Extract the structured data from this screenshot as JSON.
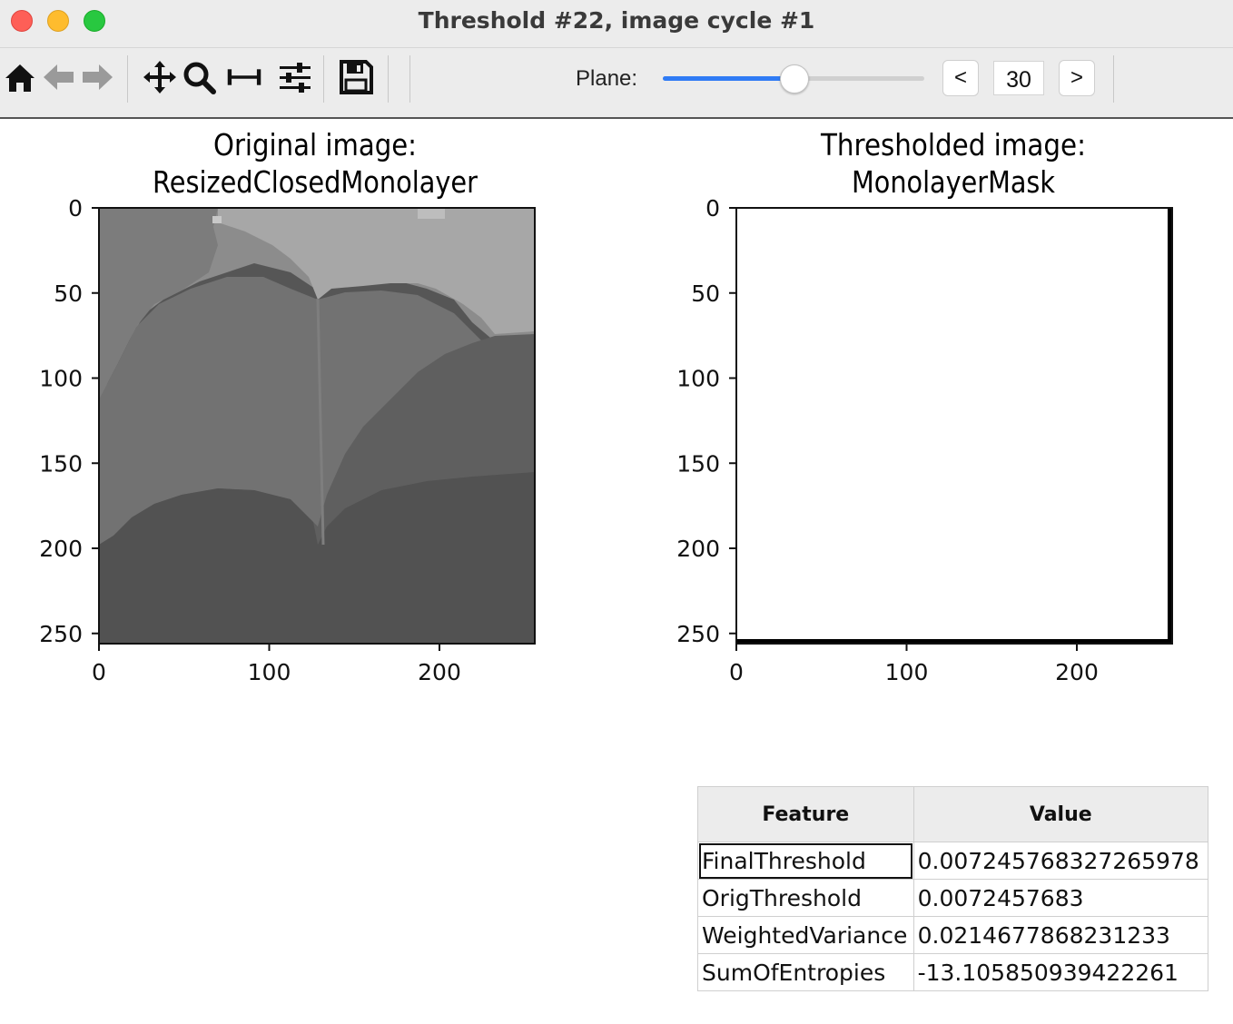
{
  "window": {
    "title": "Threshold #22, image cycle #1"
  },
  "toolbar": {
    "icons": [
      "home-icon",
      "back-arrow-icon",
      "forward-arrow-icon",
      "pan-icon",
      "zoom-icon",
      "subplots-icon",
      "configure-icon",
      "save-icon"
    ],
    "plane_label": "Plane:",
    "plane_value": "30",
    "plane_fraction": 0.5,
    "prev_label": "<",
    "next_label": ">",
    "accent_color": "#2f7bf5"
  },
  "plots": {
    "original": {
      "title_line1": "Original image:",
      "title_line2": "ResizedClosedMonolayer",
      "y_ticks": [
        "0",
        "50",
        "100",
        "150",
        "200",
        "250"
      ],
      "x_ticks": [
        "0",
        "100",
        "200"
      ]
    },
    "thresholded": {
      "title_line1": "Thresholded image:",
      "title_line2": "MonolayerMask",
      "y_ticks": [
        "0",
        "50",
        "100",
        "150",
        "200",
        "250"
      ],
      "x_ticks": [
        "0",
        "100",
        "200"
      ]
    }
  },
  "table": {
    "headers": {
      "feature": "Feature",
      "value": "Value"
    },
    "rows": [
      {
        "feature": "FinalThreshold",
        "value": "0.007245768327265978"
      },
      {
        "feature": "OrigThreshold",
        "value": "0.0072457683"
      },
      {
        "feature": "WeightedVariance",
        "value": "0.0214677868231233"
      },
      {
        "feature": "SumOfEntropies",
        "value": "-13.105850939422261"
      }
    ]
  }
}
